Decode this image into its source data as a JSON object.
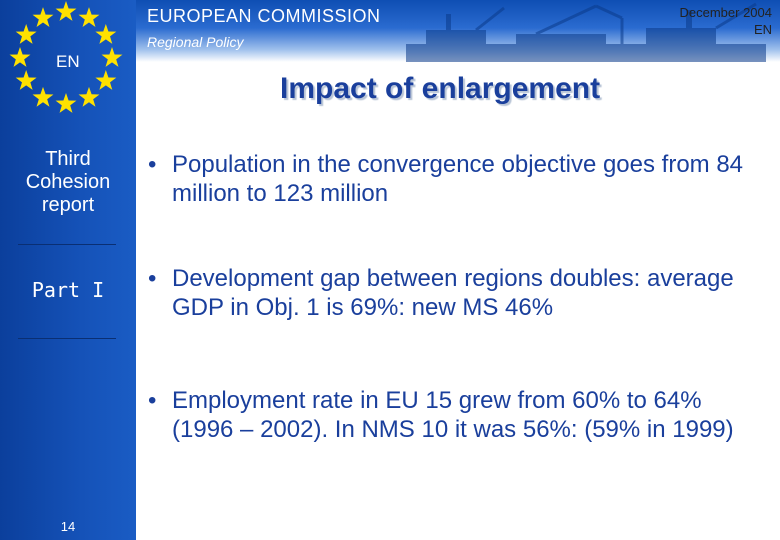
{
  "sidebar": {
    "code": "EN",
    "report": [
      "Third",
      "Cohesion",
      "report"
    ],
    "part": "Part I",
    "page_number": "14"
  },
  "header": {
    "organisation": "EUROPEAN COMMISSION",
    "department": "Regional Policy",
    "date": "December 2004",
    "language": "EN"
  },
  "slide": {
    "title": "Impact of enlargement",
    "bullet_marker": "•",
    "bullets": [
      "Population in the convergence objective goes from 84 million to 123 million",
      "Development gap between regions doubles: average GDP in Obj. 1 is 69%: new MS 46%",
      "Employment rate in EU 15 grew from 60% to 64% (1996 – 2002). In NMS 10 it was 56%: (59% in 1999)"
    ]
  },
  "colors": {
    "sidebar": "#1552b8",
    "title": "#1a3f9c",
    "star": "#ffe100"
  }
}
